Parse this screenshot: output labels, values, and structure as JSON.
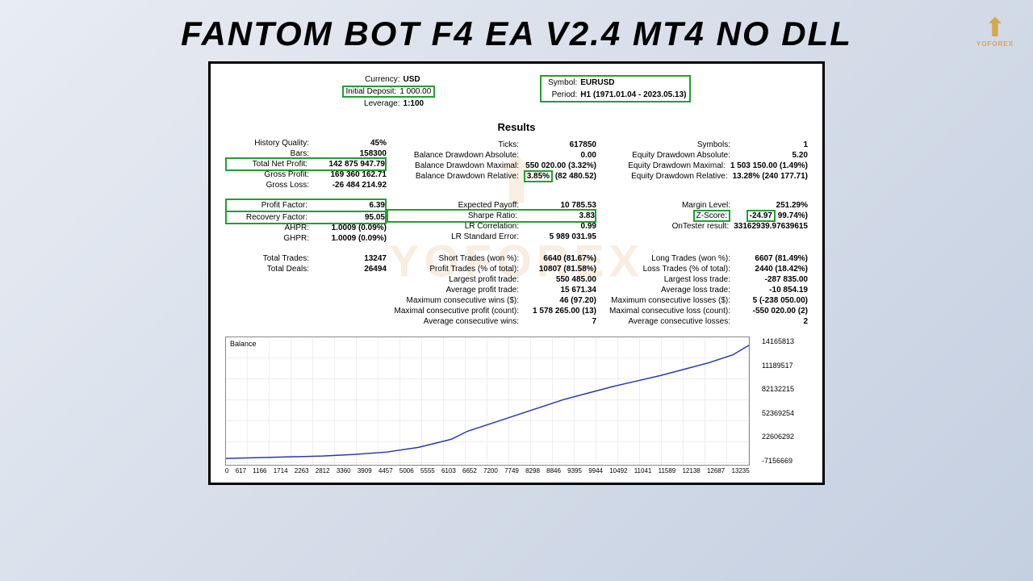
{
  "title": "FANTOM BOT F4 EA V2.4 MT4 NO DLL",
  "logo_text": "YOFOREX",
  "watermark": "YOFOREX",
  "header": {
    "left": [
      {
        "lbl": "Currency:",
        "val": "USD",
        "box": false
      },
      {
        "lbl": "Initial Deposit:",
        "val": "1 000.00",
        "box": true
      },
      {
        "lbl": "Leverage:",
        "val": "1:100",
        "box": false
      }
    ],
    "right": [
      {
        "lbl": "Symbol:",
        "val": "EURUSD",
        "box": true
      },
      {
        "lbl": "Period:",
        "val": "H1 (1971.01.04 - 2023.05.13)",
        "box": true
      }
    ]
  },
  "results_title": "Results",
  "groups": [
    [
      [
        {
          "lbl": "History Quality:",
          "val": "45%"
        },
        {
          "lbl": "Bars:",
          "val": "158300"
        },
        {
          "lbl": "Total Net Profit:",
          "val": "142 875 947.79",
          "hg": true
        },
        {
          "lbl": "Gross Profit:",
          "val": "169 360 162.71"
        },
        {
          "lbl": "Gross Loss:",
          "val": "-26 484 214.92"
        }
      ],
      [
        {
          "lbl": "",
          "val": ""
        },
        {
          "lbl": "Ticks:",
          "val": "617850"
        },
        {
          "lbl": "Balance Drawdown Absolute:",
          "val": "0.00"
        },
        {
          "lbl": "Balance Drawdown Maximal:",
          "val": "550 020.00 (3.32%)"
        },
        {
          "lbl": "Balance Drawdown Relative:",
          "val": "(82 480.52)",
          "pre": "3.85%"
        }
      ],
      [
        {
          "lbl": "",
          "val": ""
        },
        {
          "lbl": "Symbols:",
          "val": "1"
        },
        {
          "lbl": "Equity Drawdown Absolute:",
          "val": "5.20"
        },
        {
          "lbl": "Equity Drawdown Maximal:",
          "val": "1 503 150.00 (1.49%)"
        },
        {
          "lbl": "Equity Drawdown Relative:",
          "val": "13.28% (240 177.71)"
        }
      ]
    ],
    [
      [
        {
          "lbl": "Profit Factor:",
          "val": "6.39",
          "hg": true
        },
        {
          "lbl": "Recovery Factor:",
          "val": "95.05",
          "hg": true
        },
        {
          "lbl": "AHPR:",
          "val": "1.0009 (0.09%)"
        },
        {
          "lbl": "GHPR:",
          "val": "1.0009 (0.09%)"
        }
      ],
      [
        {
          "lbl": "Expected Payoff:",
          "val": "10 785.53"
        },
        {
          "lbl": "Sharpe Ratio:",
          "val": "3.83",
          "hg": true
        },
        {
          "lbl": "LR Correlation:",
          "val": "0.99"
        },
        {
          "lbl": "LR Standard Error:",
          "val": "5 989 031.95"
        }
      ],
      [
        {
          "lbl": "Margin Level:",
          "val": "251.29%"
        },
        {
          "lbl": "Z-Score:",
          "val": "99.74%)",
          "pre2": "-24.97",
          "hg": true
        },
        {
          "lbl": "OnTester result:",
          "val": "33162939.97639615"
        },
        {
          "lbl": "",
          "val": ""
        }
      ]
    ],
    [
      [
        {
          "lbl": "Total Trades:",
          "val": "13247"
        },
        {
          "lbl": "Total Deals:",
          "val": "26494"
        },
        {
          "lbl": "",
          "val": ""
        },
        {
          "lbl": "",
          "val": ""
        },
        {
          "lbl": "",
          "val": ""
        },
        {
          "lbl": "",
          "val": ""
        },
        {
          "lbl": "",
          "val": ""
        }
      ],
      [
        {
          "lbl": "Short Trades (won %):",
          "val": "6640 (81.67%)"
        },
        {
          "lbl": "Profit Trades (% of total):",
          "val": "10807 (81.58%)"
        },
        {
          "lbl": "Largest profit trade:",
          "val": "550 485.00"
        },
        {
          "lbl": "Average profit trade:",
          "val": "15 671.34"
        },
        {
          "lbl": "Maximum consecutive wins ($):",
          "val": "46 (97.20)"
        },
        {
          "lbl": "Maximal consecutive profit (count):",
          "val": "1 578 265.00 (13)"
        },
        {
          "lbl": "Average consecutive wins:",
          "val": "7"
        }
      ],
      [
        {
          "lbl": "Long Trades (won %):",
          "val": "6607 (81.49%)"
        },
        {
          "lbl": "Loss Trades (% of total):",
          "val": "2440 (18.42%)"
        },
        {
          "lbl": "Largest loss trade:",
          "val": "-287 835.00"
        },
        {
          "lbl": "Average loss trade:",
          "val": "-10 854.19"
        },
        {
          "lbl": "Maximum consecutive losses ($):",
          "val": "5 (-238 050.00)"
        },
        {
          "lbl": "Maximal consecutive loss (count):",
          "val": "-550 020.00 (2)"
        },
        {
          "lbl": "Average consecutive losses:",
          "val": "2"
        }
      ]
    ]
  ],
  "chart": {
    "label": "Balance",
    "yticks": [
      "14165813",
      "11189517",
      "82132215",
      "52369254",
      "22606292",
      "-7156669"
    ],
    "xticks": [
      "0",
      "617",
      "1166",
      "1714",
      "2263",
      "2812",
      "3360",
      "3909",
      "4457",
      "5006",
      "5555",
      "6103",
      "6652",
      "7200",
      "7749",
      "8298",
      "8846",
      "9395",
      "9944",
      "10492",
      "11041",
      "11589",
      "12138",
      "12687",
      "13235"
    ],
    "points": [
      [
        0,
        152
      ],
      [
        40,
        151
      ],
      [
        80,
        150
      ],
      [
        120,
        149
      ],
      [
        160,
        147
      ],
      [
        200,
        144
      ],
      [
        240,
        138
      ],
      [
        280,
        128
      ],
      [
        300,
        118
      ],
      [
        330,
        108
      ],
      [
        360,
        98
      ],
      [
        390,
        88
      ],
      [
        420,
        78
      ],
      [
        450,
        70
      ],
      [
        480,
        62
      ],
      [
        510,
        55
      ],
      [
        540,
        48
      ],
      [
        570,
        40
      ],
      [
        600,
        32
      ],
      [
        630,
        22
      ],
      [
        650,
        10
      ]
    ],
    "line_color": "#2838b0"
  }
}
